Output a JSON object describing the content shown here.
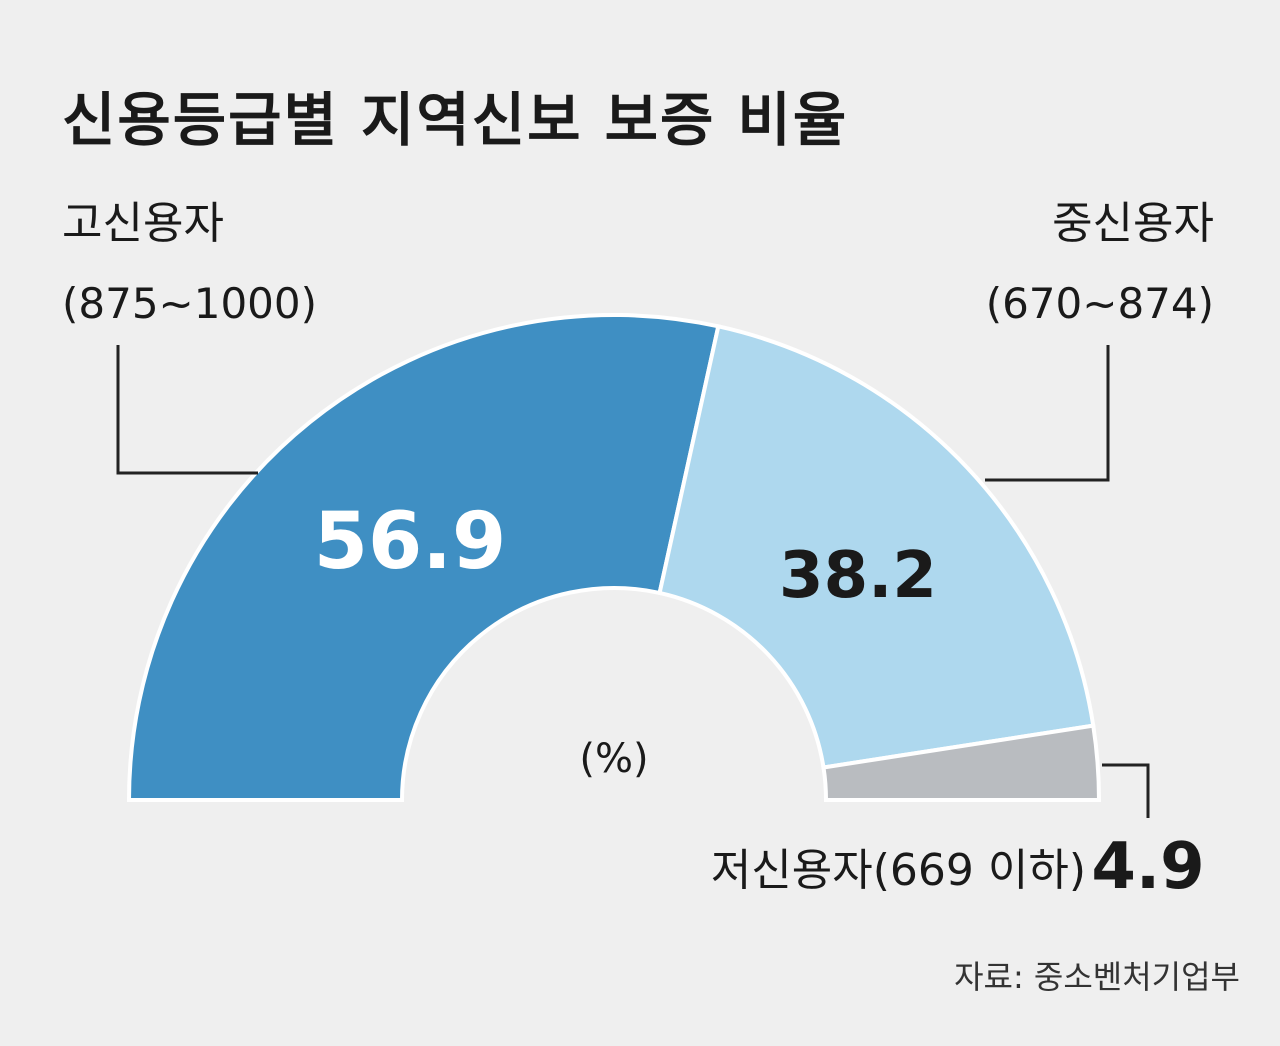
{
  "chart_data": {
    "type": "pie",
    "variant": "half-donut",
    "title": "신용등급별 지역신보 보증 비율",
    "unit": "(%)",
    "source": "자료: 중소벤처기업부",
    "categories": [
      "고신용자",
      "중신용자",
      "저신용자"
    ],
    "values": [
      56.9,
      38.2,
      4.9
    ],
    "slices": [
      {
        "name": "고신용자",
        "range": "(875~1000)",
        "value": 56.9,
        "value_label": "56.9",
        "color": "#3f8fc3",
        "value_color": "#ffffff"
      },
      {
        "name": "중신용자",
        "range": "(670~874)",
        "value": 38.2,
        "value_label": "38.2",
        "color": "#aed8ee",
        "value_color": "#1a1a1a"
      },
      {
        "name": "저신용자(669 이하)",
        "range": "",
        "value": 4.9,
        "value_label": "4.9",
        "color": "#b9bcc0",
        "value_color": "#1a1a1a"
      }
    ],
    "colors": {
      "background": "#efefef",
      "text": "#1a1a1a",
      "leader": "#222222"
    }
  }
}
